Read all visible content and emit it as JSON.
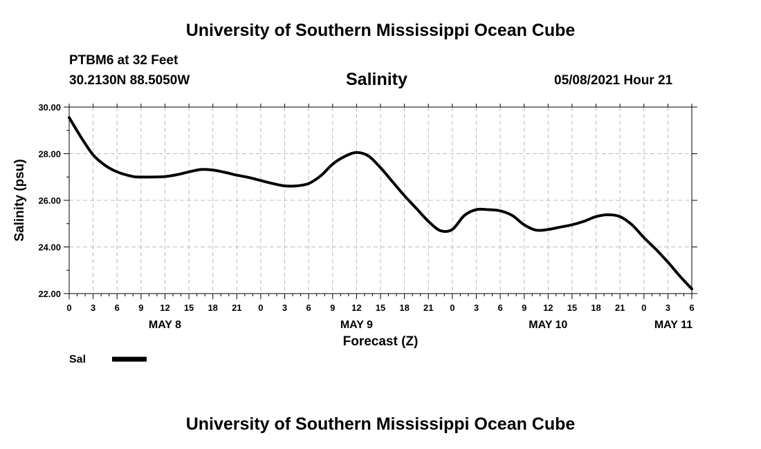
{
  "header": {
    "title": "University of Southern Mississippi Ocean Cube",
    "station": "PTBM6 at 32 Feet",
    "coords": "30.2130N  88.5050W",
    "timestamp": "05/08/2021 Hour 21"
  },
  "footer": {
    "title": "University of Southern Mississippi Ocean Cube"
  },
  "chart_data": {
    "type": "line",
    "title": "Salinity",
    "xlabel": "Forecast (Z)",
    "ylabel": "Salinity (psu)",
    "xlim": [
      0,
      78
    ],
    "ylim": [
      22.0,
      30.0
    ],
    "y_ticks": [
      "22.00",
      "24.00",
      "26.00",
      "28.00",
      "30.00"
    ],
    "x_ticks": [
      "0",
      "3",
      "6",
      "9",
      "12",
      "15",
      "18",
      "21",
      "0",
      "3",
      "6",
      "9",
      "12",
      "15",
      "18",
      "21",
      "0",
      "3",
      "6",
      "9",
      "12",
      "15",
      "18",
      "21",
      "0",
      "3",
      "6"
    ],
    "date_labels": [
      {
        "label": "MAY 8",
        "hour": 12
      },
      {
        "label": "MAY 9",
        "hour": 36
      },
      {
        "label": "MAY 10",
        "hour": 60
      },
      {
        "label": "MAY 11",
        "hour": 78
      }
    ],
    "grid": true,
    "series": [
      {
        "name": "Sal",
        "color": "#000000",
        "x": [
          0,
          1.5,
          3,
          4.5,
          6,
          8,
          9,
          10.5,
          12,
          13.5,
          15,
          16.5,
          18,
          19.5,
          21,
          22.5,
          24,
          25.5,
          27,
          28.5,
          30,
          31.5,
          33,
          34.5,
          36,
          37.5,
          39,
          40.5,
          42,
          43.5,
          45,
          46.5,
          48,
          49.5,
          51,
          52.5,
          54,
          55.5,
          57,
          58.5,
          60,
          61.5,
          63,
          64.5,
          66,
          67.5,
          69,
          70.5,
          72,
          73.5,
          75,
          76.5,
          78
        ],
        "values": [
          29.55,
          28.7,
          27.95,
          27.5,
          27.22,
          27.02,
          27.0,
          27.0,
          27.02,
          27.1,
          27.22,
          27.32,
          27.3,
          27.2,
          27.08,
          26.98,
          26.85,
          26.72,
          26.62,
          26.62,
          26.72,
          27.05,
          27.55,
          27.88,
          28.05,
          27.9,
          27.4,
          26.8,
          26.2,
          25.65,
          25.1,
          24.7,
          24.75,
          25.35,
          25.6,
          25.6,
          25.55,
          25.35,
          24.95,
          24.72,
          24.75,
          24.85,
          24.95,
          25.1,
          25.3,
          25.38,
          25.3,
          24.95,
          24.4,
          23.9,
          23.35,
          22.75,
          22.2
        ]
      }
    ],
    "legend": {
      "label": "Sal",
      "placement": "bottom-left"
    }
  }
}
